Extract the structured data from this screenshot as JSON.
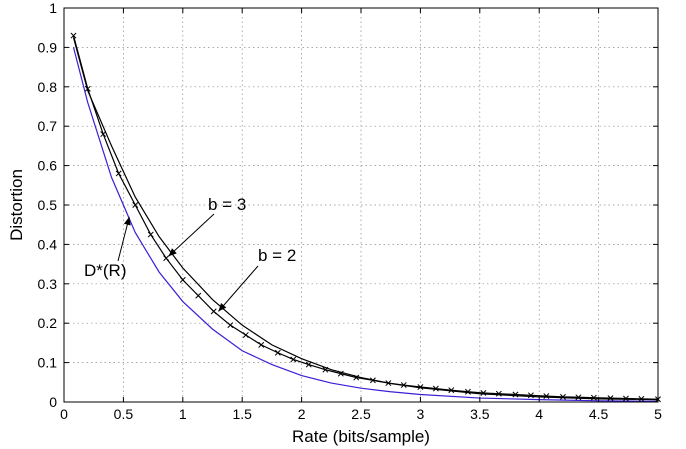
{
  "chart_data": {
    "type": "line",
    "xlabel": "Rate (bits/sample)",
    "ylabel": "Distortion",
    "xlim": [
      0,
      5
    ],
    "ylim": [
      0,
      1
    ],
    "x_ticks": [
      "0",
      "0.5",
      "1",
      "1.5",
      "2",
      "2.5",
      "3",
      "3.5",
      "4",
      "4.5",
      "5"
    ],
    "y_ticks": [
      "0",
      "0.1",
      "0.2",
      "0.3",
      "0.4",
      "0.5",
      "0.6",
      "0.7",
      "0.8",
      "0.9",
      "1"
    ],
    "grid": true,
    "series": [
      {
        "name": "D*(R)",
        "color": "#3b1fd6",
        "marker": "none",
        "x": [
          0.08,
          0.2,
          0.4,
          0.6,
          0.8,
          1.0,
          1.25,
          1.5,
          1.75,
          2.0,
          2.25,
          2.5,
          2.75,
          3.0,
          3.5,
          4.0,
          4.5,
          5.0
        ],
        "y": [
          0.9,
          0.76,
          0.57,
          0.43,
          0.33,
          0.255,
          0.185,
          0.13,
          0.095,
          0.067,
          0.048,
          0.035,
          0.026,
          0.019,
          0.01,
          0.006,
          0.003,
          0.002
        ]
      },
      {
        "name": "b = 3",
        "color": "#000000",
        "marker": "none",
        "x": [
          0.08,
          0.2,
          0.4,
          0.6,
          0.8,
          1.0,
          1.25,
          1.5,
          1.75,
          2.0,
          2.25,
          2.5,
          2.75,
          3.0,
          3.5,
          4.0,
          4.5,
          5.0
        ],
        "y": [
          0.925,
          0.79,
          0.65,
          0.52,
          0.42,
          0.34,
          0.26,
          0.195,
          0.145,
          0.11,
          0.082,
          0.062,
          0.047,
          0.036,
          0.021,
          0.013,
          0.008,
          0.006
        ]
      },
      {
        "name": "b = 2",
        "color": "#000000",
        "marker": "x",
        "x": [
          0.08,
          0.2,
          0.33,
          0.46,
          0.6,
          0.73,
          0.86,
          1.0,
          1.13,
          1.26,
          1.4,
          1.53,
          1.66,
          1.8,
          1.93,
          2.06,
          2.2,
          2.33,
          2.46,
          2.6,
          2.73,
          2.86,
          3.0,
          3.13,
          3.26,
          3.4,
          3.53,
          3.66,
          3.8,
          3.93,
          4.06,
          4.2,
          4.33,
          4.46,
          4.6,
          4.73,
          4.86,
          5.0
        ],
        "y": [
          0.93,
          0.795,
          0.68,
          0.58,
          0.5,
          0.425,
          0.365,
          0.31,
          0.27,
          0.23,
          0.195,
          0.17,
          0.145,
          0.125,
          0.108,
          0.095,
          0.082,
          0.072,
          0.062,
          0.055,
          0.048,
          0.043,
          0.038,
          0.034,
          0.03,
          0.026,
          0.023,
          0.021,
          0.019,
          0.017,
          0.015,
          0.013,
          0.012,
          0.011,
          0.01,
          0.009,
          0.008,
          0.007
        ]
      }
    ],
    "annotations": [
      {
        "text": "b = 3",
        "arrow_to": [
          0.88,
          0.37
        ]
      },
      {
        "text": "b = 2",
        "arrow_to": [
          1.3,
          0.23
        ]
      },
      {
        "text": "D*(R)",
        "arrow_to": [
          0.55,
          0.47
        ]
      }
    ]
  }
}
